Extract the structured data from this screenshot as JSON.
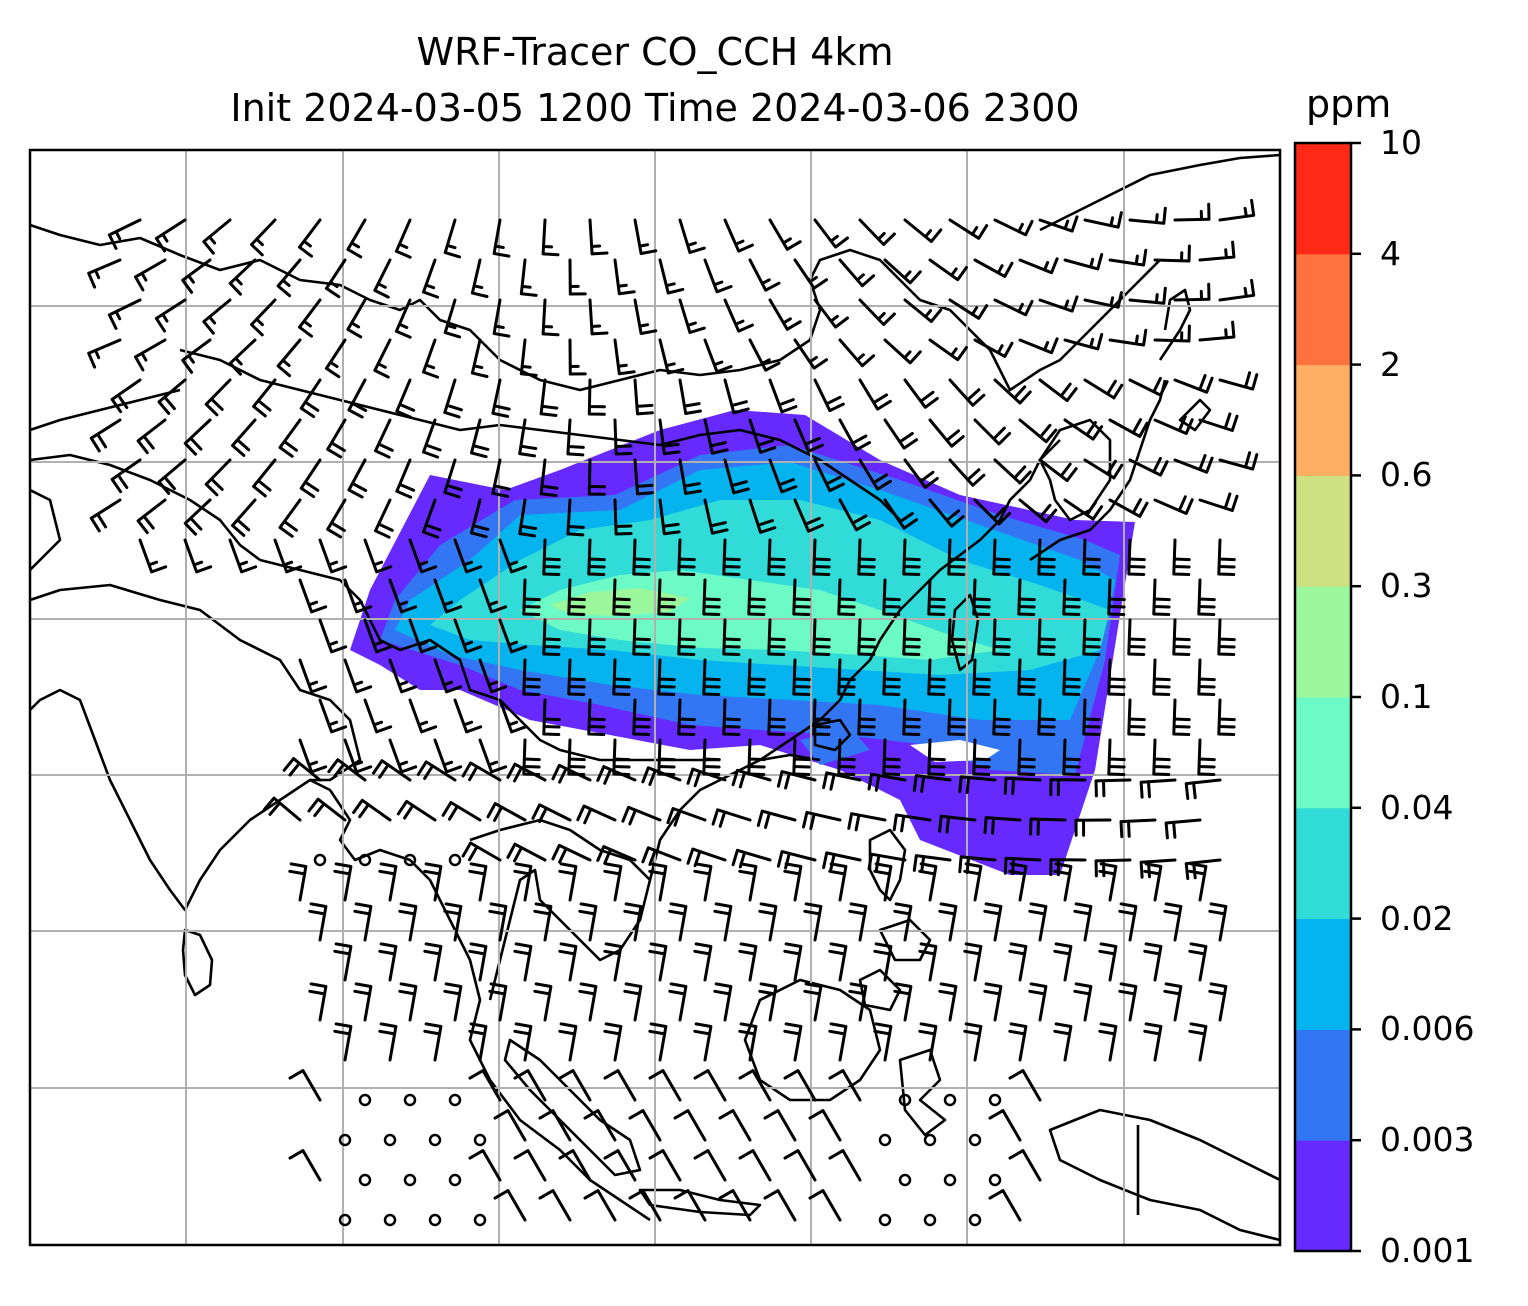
{
  "title": {
    "line1": "WRF-Tracer CO_CCH 4km",
    "line2": "Init 2024-03-05 1200 Time 2024-03-06 2300"
  },
  "colorbar": {
    "unit": "ppm",
    "levels": [
      "0.001",
      "0.003",
      "0.006",
      "0.02",
      "0.04",
      "0.1",
      "0.3",
      "0.6",
      "2",
      "4",
      "10"
    ],
    "colors": [
      "#6629fe",
      "#3376f4",
      "#05b3ef",
      "#30dbd8",
      "#6cfac6",
      "#9af79c",
      "#cfe082",
      "#fdae62",
      "#fe7240",
      "#fe2a17"
    ]
  },
  "map": {
    "gridlines": true,
    "coastline_color": "#000000",
    "grid_color": "#b0b0b0",
    "tracer_plume": "Eastward-elongated CO tracer plume from Myanmar/Yunnan across southern China and Taiwan to the western Pacific",
    "wind_barbs": "black wind barbs over the domain; calm circles over the Bay of Bengal and maritime Southeast Asia"
  }
}
